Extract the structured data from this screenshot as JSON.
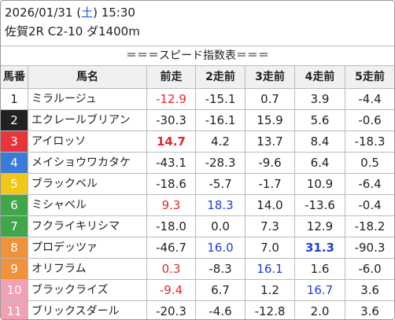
{
  "header": {
    "date_parts": [
      {
        "text": "2026/01/31 (",
        "color": "#222222"
      },
      {
        "text": "土",
        "color": "#1f5bd8"
      },
      {
        "text": ") 15:30",
        "color": "#222222"
      }
    ],
    "race": "佐賀2R C2-10 ダ1400m"
  },
  "table": {
    "title": "＝＝＝スピード指数表＝＝＝",
    "columns": [
      "馬番",
      "馬名",
      "前走",
      "2走前",
      "3走前",
      "4走前",
      "5走前"
    ],
    "rows": [
      {
        "no": "1",
        "name": "ミラルージュ",
        "frame_color": "#ffffff",
        "no_color": "#222222",
        "values": [
          "-12.9",
          "-15.1",
          "0.7",
          "3.9",
          "-4.4"
        ],
        "highlights": [
          {
            "index": 0,
            "color": "#e8262a",
            "bold": false
          }
        ]
      },
      {
        "no": "2",
        "name": "エクレールブリアン",
        "frame_color": "#222222",
        "no_color": "#ffffff",
        "values": [
          "-30.3",
          "-16.1",
          "15.9",
          "5.6",
          "-0.6"
        ],
        "highlights": []
      },
      {
        "no": "3",
        "name": "アイロッソ",
        "frame_color": "#e8343b",
        "no_color": "#ffffff",
        "values": [
          "14.7",
          "4.2",
          "13.7",
          "8.4",
          "-18.3"
        ],
        "highlights": [
          {
            "index": 0,
            "color": "#e8262a",
            "bold": true
          }
        ]
      },
      {
        "no": "4",
        "name": "メイショウワカタケ",
        "frame_color": "#3a7ad8",
        "no_color": "#ffffff",
        "values": [
          "-43.1",
          "-28.3",
          "-9.6",
          "6.4",
          "0.5"
        ],
        "highlights": []
      },
      {
        "no": "5",
        "name": "ブラックベル",
        "frame_color": "#f2c718",
        "no_color": "#ffffff",
        "values": [
          "-18.6",
          "-5.7",
          "-1.7",
          "10.9",
          "-6.4"
        ],
        "highlights": []
      },
      {
        "no": "6",
        "name": "ミシャベル",
        "frame_color": "#3fa64a",
        "no_color": "#ffffff",
        "values": [
          "9.3",
          "18.3",
          "14.0",
          "-13.6",
          "-0.4"
        ],
        "highlights": [
          {
            "index": 0,
            "color": "#e8262a",
            "bold": false
          },
          {
            "index": 1,
            "color": "#1f3fd8",
            "bold": false
          }
        ]
      },
      {
        "no": "7",
        "name": "フクライキリシマ",
        "frame_color": "#3fa64a",
        "no_color": "#ffffff",
        "values": [
          "-18.0",
          "0.0",
          "7.3",
          "12.9",
          "-18.2"
        ],
        "highlights": []
      },
      {
        "no": "8",
        "name": "プロデッツァ",
        "frame_color": "#f0923a",
        "no_color": "#ffffff",
        "values": [
          "-46.7",
          "16.0",
          "7.0",
          "31.3",
          "-90.3"
        ],
        "highlights": [
          {
            "index": 1,
            "color": "#1f3fd8",
            "bold": false
          },
          {
            "index": 3,
            "color": "#1f3fd8",
            "bold": true
          }
        ]
      },
      {
        "no": "9",
        "name": "オリフラム",
        "frame_color": "#f0923a",
        "no_color": "#ffffff",
        "values": [
          "0.3",
          "-8.3",
          "16.1",
          "1.6",
          "-6.0"
        ],
        "highlights": [
          {
            "index": 0,
            "color": "#e8262a",
            "bold": false
          },
          {
            "index": 2,
            "color": "#1f3fd8",
            "bold": false
          }
        ]
      },
      {
        "no": "10",
        "name": "ブラックライズ",
        "frame_color": "#f2a0b4",
        "no_color": "#ffffff",
        "values": [
          "-9.4",
          "6.7",
          "1.2",
          "16.7",
          "3.6"
        ],
        "highlights": [
          {
            "index": 0,
            "color": "#e8262a",
            "bold": false
          },
          {
            "index": 3,
            "color": "#1f3fd8",
            "bold": false
          }
        ]
      },
      {
        "no": "11",
        "name": "ブリックスダール",
        "frame_color": "#f2a0b4",
        "no_color": "#ffffff",
        "values": [
          "-20.3",
          "-4.6",
          "-12.8",
          "2.0",
          "3.6"
        ],
        "highlights": []
      }
    ]
  }
}
